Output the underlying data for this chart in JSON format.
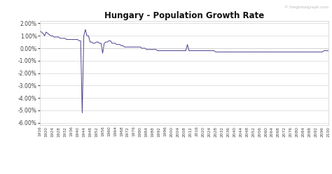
{
  "title": "Hungary - Population Growth Rate",
  "watermark": "© theglobalgraph.com",
  "line_color": "#4b3f8c",
  "bg_color": "#ffffff",
  "plot_bg_color": "#ffffff",
  "grid_color": "#cccccc",
  "zero_line_color": "#aaaaaa",
  "ylim": [
    -0.062,
    0.022
  ],
  "yticks": [
    -0.06,
    -0.05,
    -0.04,
    -0.03,
    -0.02,
    -0.01,
    0.0,
    0.01,
    0.02
  ],
  "ytick_labels": [
    "-6.00%",
    "-5.00%",
    "-4.00%",
    "-3.00%",
    "-2.00%",
    "-1.00%",
    "0.00%",
    "1.00%",
    "2.00%"
  ],
  "years": [
    1916,
    1917,
    1918,
    1919,
    1920,
    1921,
    1922,
    1923,
    1924,
    1925,
    1926,
    1927,
    1928,
    1929,
    1930,
    1931,
    1932,
    1933,
    1934,
    1935,
    1936,
    1937,
    1938,
    1939,
    1940,
    1941,
    1942,
    1943,
    1944,
    1945,
    1946,
    1947,
    1948,
    1949,
    1950,
    1951,
    1952,
    1953,
    1954,
    1955,
    1956,
    1957,
    1958,
    1959,
    1960,
    1961,
    1962,
    1963,
    1964,
    1965,
    1966,
    1967,
    1968,
    1969,
    1970,
    1971,
    1972,
    1973,
    1974,
    1975,
    1976,
    1977,
    1978,
    1979,
    1980,
    1981,
    1982,
    1983,
    1984,
    1985,
    1986,
    1987,
    1988,
    1989,
    1990,
    1991,
    1992,
    1993,
    1994,
    1995,
    1996,
    1997,
    1998,
    1999,
    2000,
    2001,
    2002,
    2003,
    2004,
    2005,
    2006,
    2007,
    2008,
    2009,
    2010,
    2011,
    2012,
    2013,
    2014,
    2015,
    2016,
    2017,
    2018,
    2019,
    2020,
    2021,
    2022,
    2023,
    2024,
    2025,
    2026,
    2027,
    2028,
    2029,
    2030,
    2031,
    2032,
    2033,
    2034,
    2035,
    2036,
    2037,
    2038,
    2039,
    2040,
    2041,
    2042,
    2043,
    2044,
    2045,
    2046,
    2047,
    2048,
    2049,
    2050,
    2051,
    2052,
    2053,
    2054,
    2055,
    2056,
    2057,
    2058,
    2059,
    2060,
    2061,
    2062,
    2063,
    2064,
    2065,
    2066,
    2067,
    2068,
    2069,
    2070,
    2071,
    2072,
    2073,
    2074,
    2075,
    2076,
    2077,
    2078,
    2079,
    2080,
    2081,
    2082,
    2083,
    2084,
    2085,
    2086,
    2087,
    2088,
    2089,
    2090,
    2091,
    2092,
    2093,
    2094,
    2095,
    2096,
    2097,
    2098,
    2099,
    2100
  ],
  "values": [
    0.014,
    0.013,
    0.012,
    0.01,
    0.013,
    0.012,
    0.011,
    0.01,
    0.01,
    0.009,
    0.009,
    0.009,
    0.009,
    0.008,
    0.008,
    0.008,
    0.008,
    0.007,
    0.007,
    0.007,
    0.007,
    0.007,
    0.007,
    0.007,
    0.007,
    0.006,
    0.006,
    -0.052,
    0.01,
    0.015,
    0.01,
    0.01,
    0.005,
    0.005,
    0.004,
    0.004,
    0.005,
    0.005,
    0.004,
    0.004,
    -0.004,
    0.004,
    0.005,
    0.005,
    0.006,
    0.006,
    0.004,
    0.004,
    0.004,
    0.003,
    0.003,
    0.003,
    0.002,
    0.002,
    0.001,
    0.001,
    0.001,
    0.001,
    0.001,
    0.001,
    0.001,
    0.001,
    0.001,
    0.001,
    0.001,
    0.0,
    0.0,
    0.0,
    -0.001,
    -0.001,
    -0.001,
    -0.001,
    -0.001,
    -0.001,
    -0.001,
    -0.002,
    -0.002,
    -0.002,
    -0.002,
    -0.002,
    -0.002,
    -0.002,
    -0.002,
    -0.002,
    -0.002,
    -0.002,
    -0.002,
    -0.002,
    -0.002,
    -0.002,
    -0.002,
    -0.002,
    -0.002,
    -0.002,
    0.003,
    -0.002,
    -0.002,
    -0.002,
    -0.002,
    -0.002,
    -0.002,
    -0.002,
    -0.002,
    -0.002,
    -0.002,
    -0.002,
    -0.002,
    -0.002,
    -0.002,
    -0.002,
    -0.002,
    -0.002,
    -0.003,
    -0.003,
    -0.003,
    -0.003,
    -0.003,
    -0.003,
    -0.003,
    -0.003,
    -0.003,
    -0.003,
    -0.003,
    -0.003,
    -0.003,
    -0.003,
    -0.003,
    -0.003,
    -0.003,
    -0.003,
    -0.003,
    -0.003,
    -0.003,
    -0.003,
    -0.003,
    -0.003,
    -0.003,
    -0.003,
    -0.003,
    -0.003,
    -0.003,
    -0.003,
    -0.003,
    -0.003,
    -0.003,
    -0.003,
    -0.003,
    -0.003,
    -0.003,
    -0.003,
    -0.003,
    -0.003,
    -0.003,
    -0.003,
    -0.003,
    -0.003,
    -0.003,
    -0.003,
    -0.003,
    -0.003,
    -0.003,
    -0.003,
    -0.003,
    -0.003,
    -0.003,
    -0.003,
    -0.003,
    -0.003,
    -0.003,
    -0.003,
    -0.003,
    -0.003,
    -0.003,
    -0.003,
    -0.003,
    -0.003,
    -0.003,
    -0.003,
    -0.003,
    -0.003,
    -0.003,
    -0.002,
    -0.002,
    -0.002,
    -0.002
  ]
}
